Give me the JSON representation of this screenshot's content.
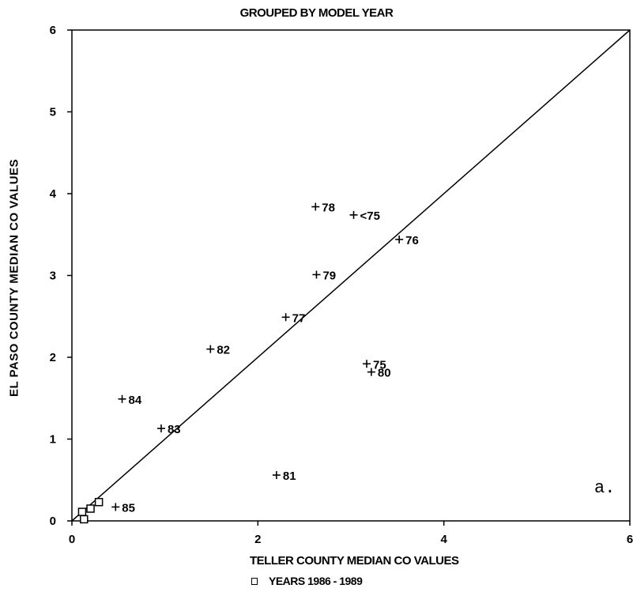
{
  "chart_data": {
    "type": "scatter",
    "title": "GROUPED BY MODEL YEAR",
    "xlabel": "TELLER COUNTY MEDIAN CO VALUES",
    "ylabel": "EL PASO COUNTY MEDIAN CO VALUES",
    "xlim": [
      0,
      6
    ],
    "ylim": [
      0,
      6
    ],
    "x_ticks": [
      "0",
      "2",
      "4",
      "6"
    ],
    "y_ticks": [
      "0",
      "1",
      "2",
      "3",
      "4",
      "5",
      "6"
    ],
    "panel_label": "a.",
    "reference_line": {
      "from": [
        0,
        0
      ],
      "to": [
        6,
        6
      ]
    },
    "series": [
      {
        "marker": "plus",
        "points": [
          {
            "x": 2.62,
            "y": 3.84,
            "label": "78"
          },
          {
            "x": 3.03,
            "y": 3.74,
            "label": "<75"
          },
          {
            "x": 3.52,
            "y": 3.44,
            "label": "76"
          },
          {
            "x": 2.63,
            "y": 3.01,
            "label": "79"
          },
          {
            "x": 2.3,
            "y": 2.49,
            "label": "77"
          },
          {
            "x": 1.49,
            "y": 2.1,
            "label": "82"
          },
          {
            "x": 3.17,
            "y": 1.92,
            "label": "75"
          },
          {
            "x": 3.22,
            "y": 1.82,
            "label": "80"
          },
          {
            "x": 0.54,
            "y": 1.49,
            "label": "84"
          },
          {
            "x": 0.96,
            "y": 1.13,
            "label": "83"
          },
          {
            "x": 2.2,
            "y": 0.56,
            "label": "81"
          },
          {
            "x": 0.47,
            "y": 0.17,
            "label": "85"
          }
        ]
      },
      {
        "name": "YEARS 1986 - 1989",
        "marker": "square",
        "points": [
          {
            "x": 0.11,
            "y": 0.11
          },
          {
            "x": 0.2,
            "y": 0.15
          },
          {
            "x": 0.29,
            "y": 0.23
          },
          {
            "x": 0.13,
            "y": 0.02
          }
        ]
      }
    ]
  }
}
